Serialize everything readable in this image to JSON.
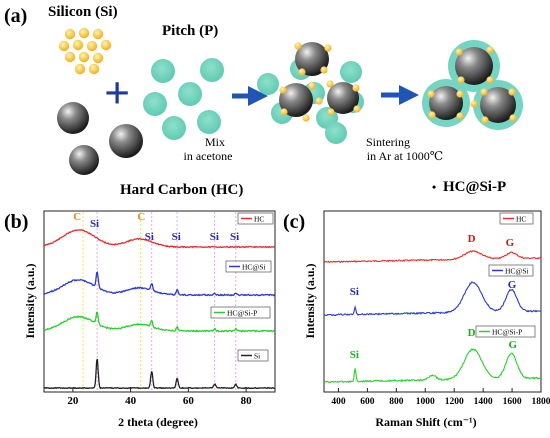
{
  "schematic": {
    "panel_label": "(a)",
    "silicon_label": "Silicon (Si)",
    "pitch_label": "Pitch (P)",
    "hc_label": "Hard Carbon (HC)",
    "plus_symbol": "+",
    "mix_line1": "Mix",
    "mix_line2": "in acetone",
    "sinter_line1": "Sintering",
    "sinter_line2": "in Ar at 1000℃",
    "product_bullet": "•",
    "product_label": "HC@Si-P"
  },
  "xrd": {
    "panel_label": "(b)",
    "xlabel": "2 theta (degree)",
    "ylabel": "Intensity (a.u.)",
    "x_ticks": [
      "20",
      "40",
      "60",
      "80"
    ],
    "peak_labels": [
      {
        "text": "C",
        "color": "#e08a1a"
      },
      {
        "text": "Si",
        "color": "#2a2ab8"
      },
      {
        "text": "C",
        "color": "#e08a1a"
      },
      {
        "text": "Si",
        "color": "#2a2ab8"
      },
      {
        "text": "Si",
        "color": "#2a2ab8"
      },
      {
        "text": "Si",
        "color": "#2a2ab8"
      },
      {
        "text": "Si",
        "color": "#2a2ab8"
      }
    ],
    "legends": [
      "HC",
      "HC@Si",
      "HC@Si-P",
      "Si"
    ],
    "colors": {
      "HC": "#ee2a2a",
      "HC@Si": "#2a3ad0",
      "HC@Si-P": "#2ad02a",
      "Si": "#222222"
    }
  },
  "raman": {
    "panel_label": "(c)",
    "xlabel": "Raman Shift (cm⁻¹)",
    "ylabel": "Intensity (a.u.)",
    "x_ticks": [
      "400",
      "600",
      "800",
      "1000",
      "1200",
      "1400",
      "1600",
      "1800"
    ],
    "legends": [
      "HC",
      "HC@Si",
      "HC@Si-P"
    ],
    "band_labels": {
      "HC_D": "D",
      "HC_G": "G",
      "HCSi_Si": "Si",
      "HCSi_G": "G",
      "HCSiP_Si": "Si",
      "HCSiP_D": "D",
      "HCSiP_G": "G"
    }
  },
  "chart_data": [
    {
      "type": "line",
      "title": "(b)",
      "xlabel": "2 theta (degree)",
      "ylabel": "Intensity (a.u.)",
      "xlim": [
        10,
        90
      ],
      "x_ticks": [
        20,
        40,
        60,
        80
      ],
      "series": [
        {
          "name": "HC",
          "features": "broad humps near 23 and 43 degrees"
        },
        {
          "name": "HC@Si",
          "features": "broad humps plus Si peaks at 28.4, 47.3, 56.1, 69.1, 76.4"
        },
        {
          "name": "HC@Si-P",
          "features": "broad humps plus Si peaks at 28.4, 47.3, 56.1, 69.1, 76.4"
        },
        {
          "name": "Si",
          "features": "sharp peaks at 28.4, 47.3, 56.1, 69.1, 76.4"
        }
      ]
    },
    {
      "type": "line",
      "title": "(c)",
      "xlabel": "Raman Shift (cm⁻¹)",
      "ylabel": "Intensity (a.u.)",
      "xlim": [
        300,
        1800
      ],
      "x_ticks": [
        400,
        600,
        800,
        1000,
        1200,
        1400,
        1600,
        1800
      ],
      "series": [
        {
          "name": "HC",
          "features": "D band ~1330, G band ~1590"
        },
        {
          "name": "HC@Si",
          "features": "Si ~510, D band ~1330, G band ~1590"
        },
        {
          "name": "HC@Si-P",
          "features": "Si ~510, D band ~1330, G band ~1590"
        }
      ]
    }
  ]
}
